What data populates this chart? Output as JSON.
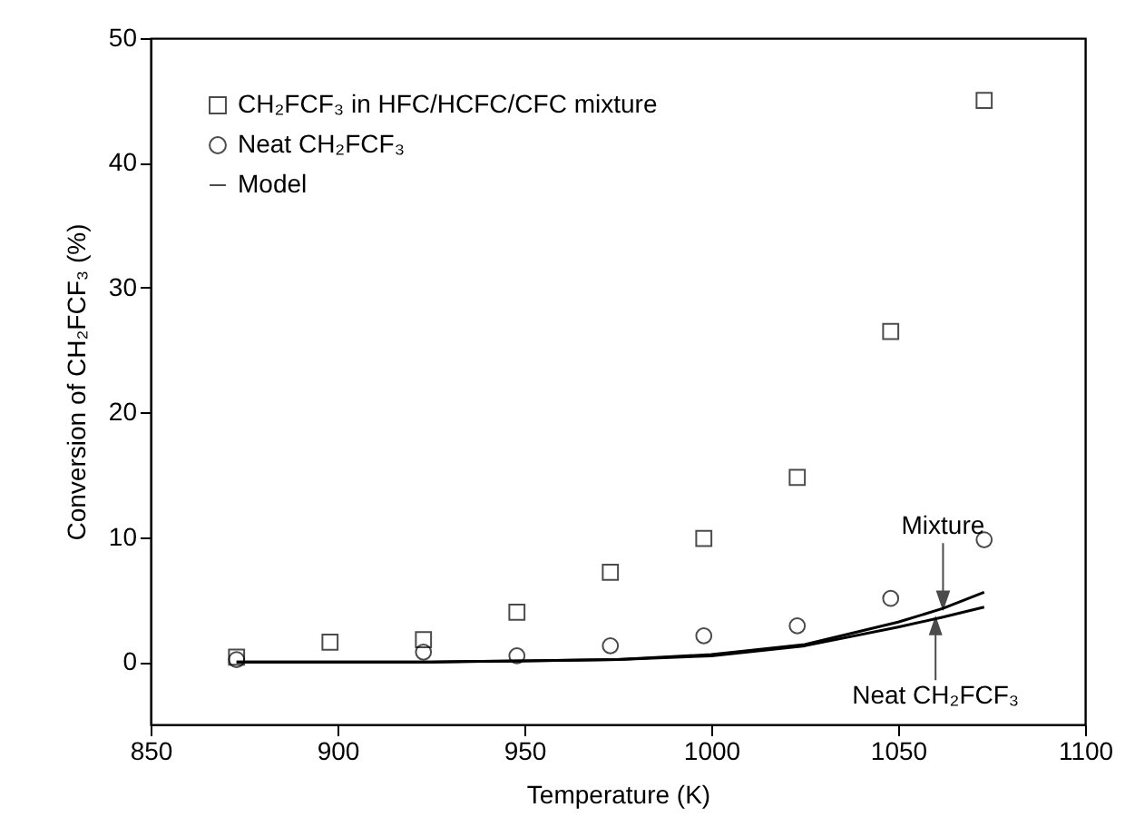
{
  "chart_data": {
    "type": "scatter",
    "xlabel": "Temperature (K)",
    "ylabel": "Conversion of CH₂FCF₃ (%)",
    "xlim": [
      850,
      1100
    ],
    "xticks": [
      850,
      900,
      950,
      1000,
      1050,
      1100
    ],
    "ylim": [
      -5,
      50
    ],
    "yticks": [
      0,
      10,
      20,
      30,
      40,
      50
    ],
    "grid": false,
    "legend": "top left",
    "series": [
      {
        "name": "CH₂FCF₃ in HFC/HCFC/CFC mixture",
        "marker": "square",
        "color": "#000000",
        "x": [
          873,
          898,
          923,
          948,
          973,
          998,
          1023,
          1048,
          1073
        ],
        "values": [
          0.4,
          1.6,
          1.8,
          4.0,
          7.2,
          9.9,
          14.8,
          26.5,
          45.0
        ]
      },
      {
        "name": "Neat CH₂FCF₃",
        "marker": "circle",
        "color": "#000000",
        "x": [
          873,
          923,
          948,
          973,
          998,
          1023,
          1048,
          1073
        ],
        "values": [
          0.2,
          0.8,
          0.5,
          1.3,
          2.1,
          2.9,
          5.1,
          9.8
        ]
      },
      {
        "name": "Model",
        "type": "line",
        "color": "#000000",
        "x": [
          873,
          900,
          925,
          950,
          975,
          1000,
          1025,
          1050,
          1062,
          1073
        ],
        "values": [
          0,
          0,
          0,
          0.1,
          0.2,
          0.6,
          1.4,
          3.2,
          4.3,
          5.6
        ]
      },
      {
        "type": "line",
        "color": "#000000",
        "x": [
          873,
          900,
          925,
          950,
          975,
          1000,
          1025,
          1050,
          1062,
          1073
        ],
        "values": [
          0,
          0,
          0,
          0.1,
          0.2,
          0.5,
          1.3,
          2.8,
          3.6,
          4.4
        ]
      }
    ],
    "annotations": [
      {
        "text": "Mixture",
        "x": 1062,
        "y": 4.3
      },
      {
        "text": "Neat CH₂FCF₃",
        "x": 1060,
        "y": 3.5
      }
    ]
  }
}
